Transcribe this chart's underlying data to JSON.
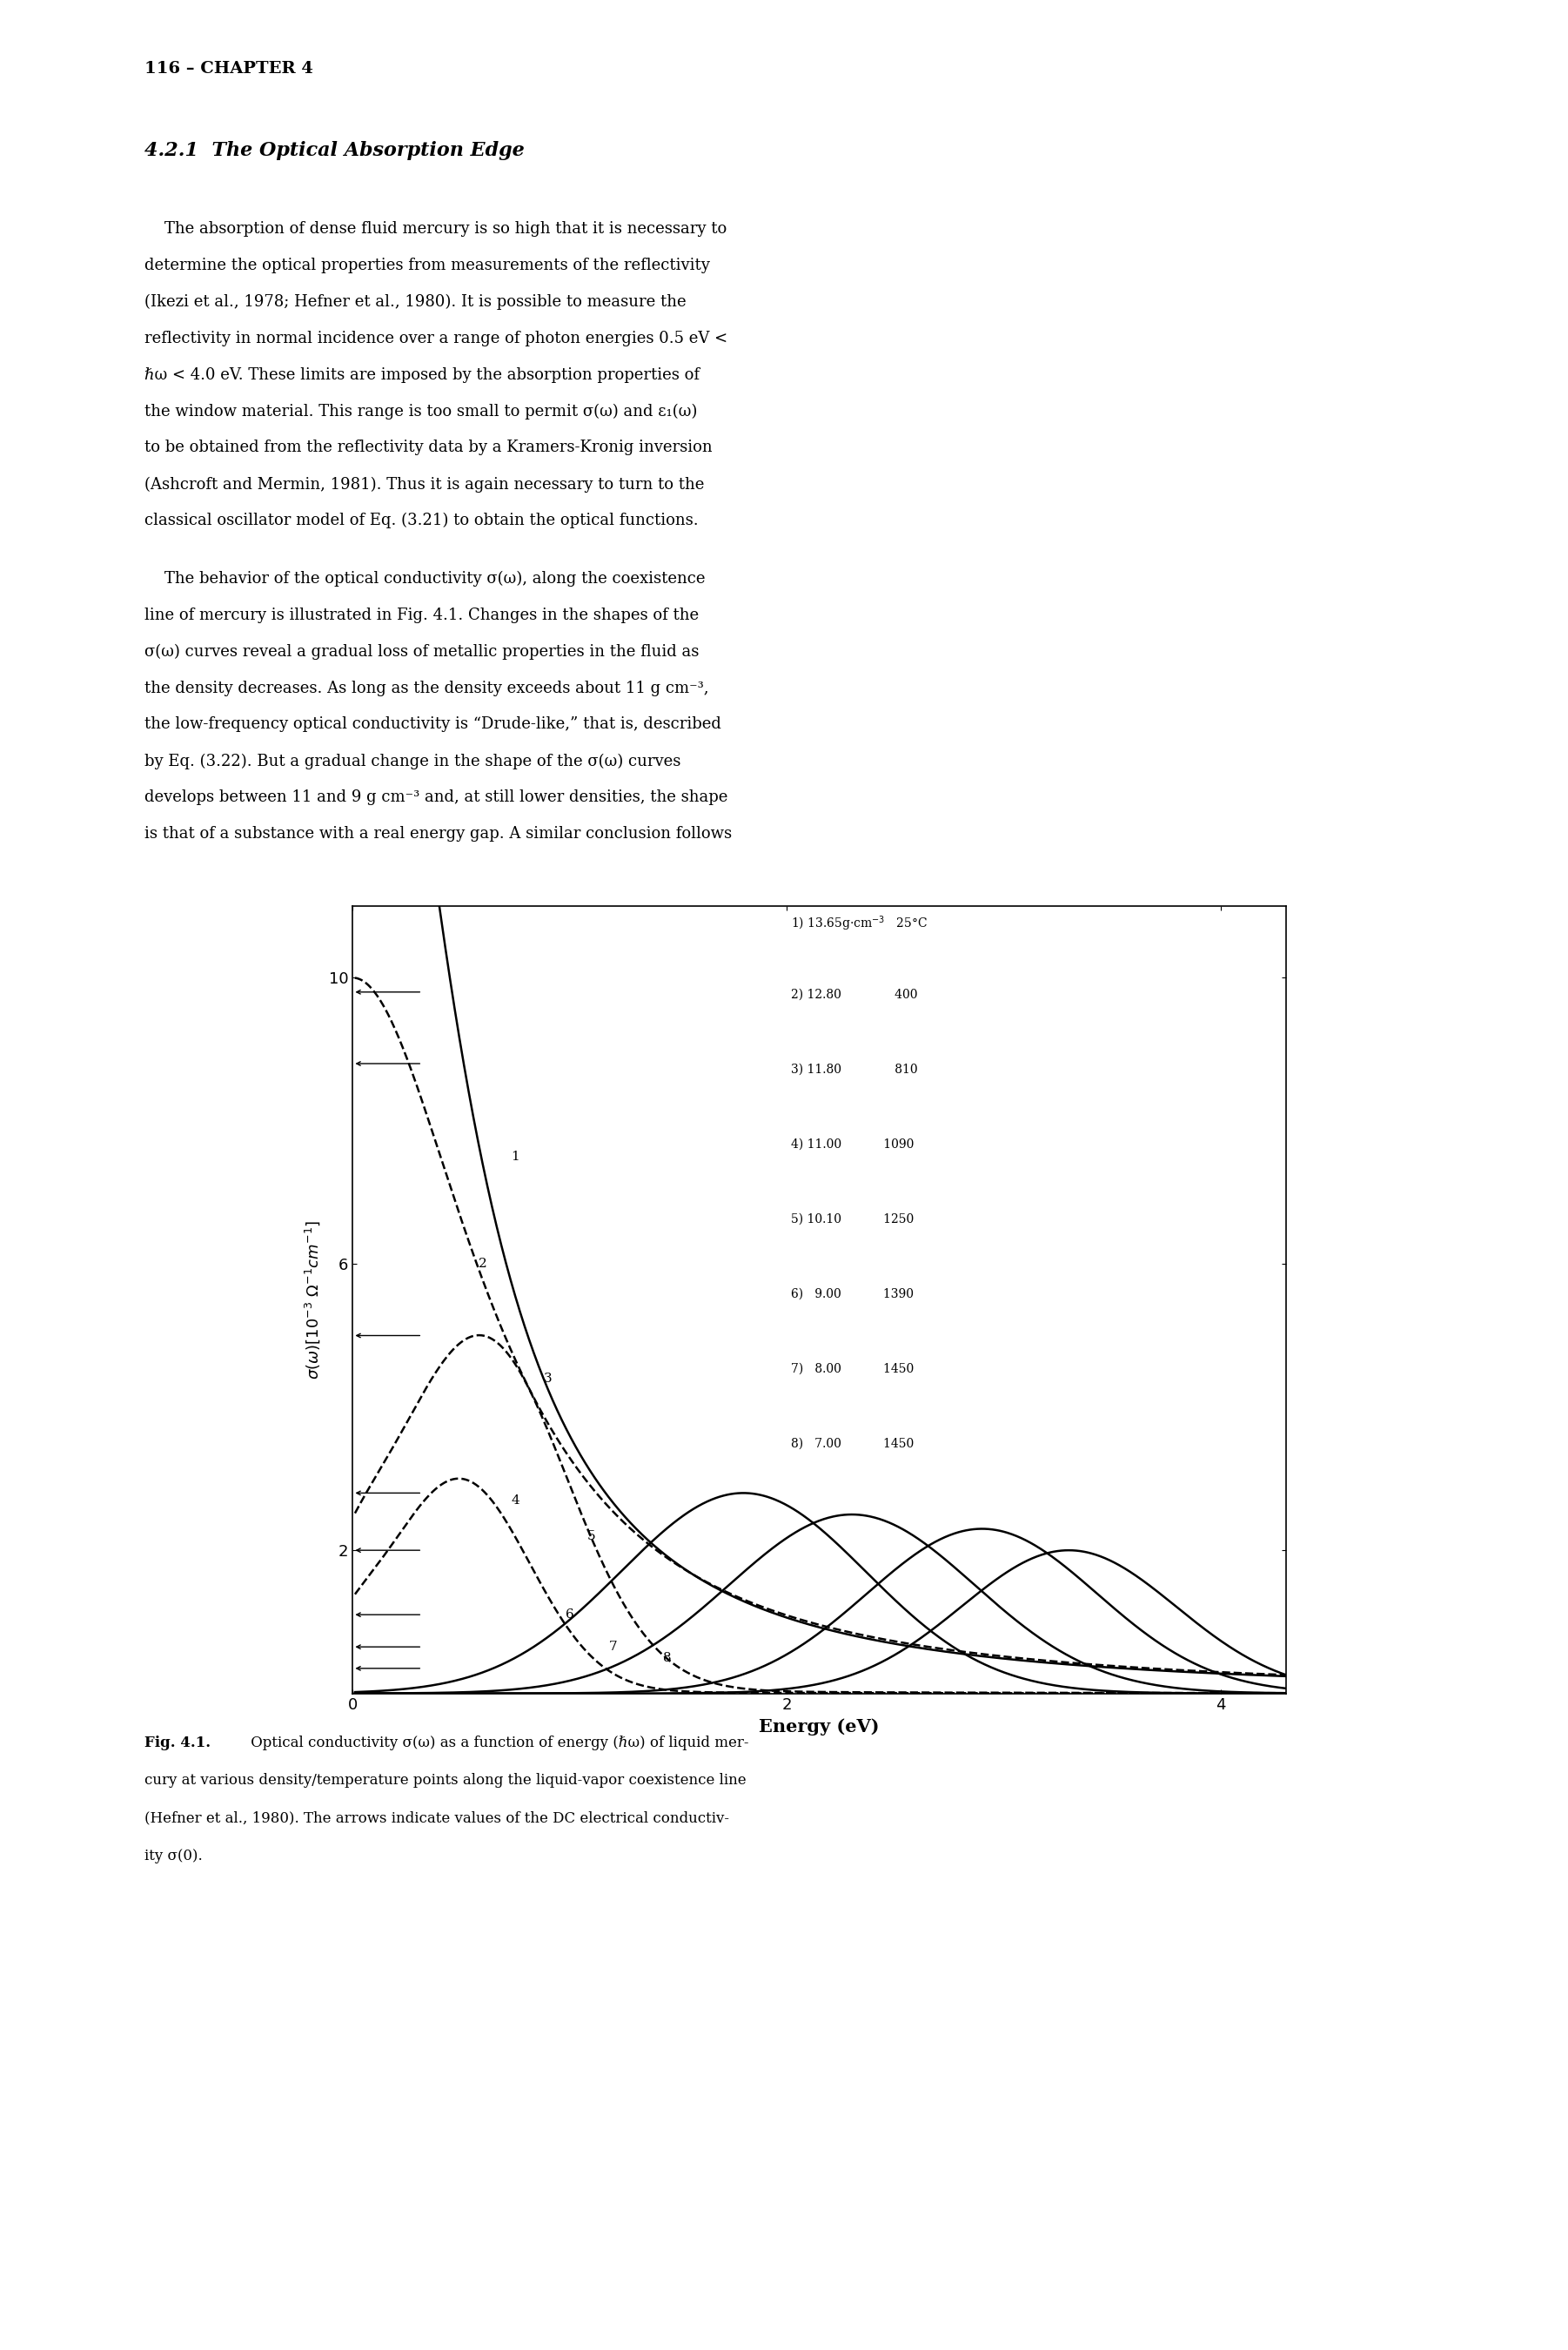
{
  "page_header": "116 – CHAPTER 4",
  "section_title": "4.2.1  The Optical Absorption Edge",
  "body_text": [
    "    The absorption of dense fluid mercury is so high that it is necessary to",
    "determine the optical properties from measurements of the reflectivity",
    "(Ikezi et al., 1978; Hefner et al., 1980). It is possible to measure the",
    "reflectivity in normal incidence over a range of photon energies 0.5 eV <",
    "ℏω < 4.0 eV. These limits are imposed by the absorption properties of",
    "the window material. This range is too small to permit σ(ω) and ε₁(ω)",
    "to be obtained from the reflectivity data by a Kramers-Kronig inversion",
    "(Ashcroft and Mermin, 1981). Thus it is again necessary to turn to the",
    "classical oscillator model of Eq. (3.21) to obtain the optical functions."
  ],
  "body_text2": [
    "    The behavior of the optical conductivity σ(ω), along the coexistence",
    "line of mercury is illustrated in Fig. 4.1. Changes in the shapes of the",
    "σ(ω) curves reveal a gradual loss of metallic properties in the fluid as",
    "the density decreases. As long as the density exceeds about 11 g cm⁻³,",
    "the low-frequency optical conductivity is “Drude-like,” that is, described",
    "by Eq. (3.22). But a gradual change in the shape of the σ(ω) curves",
    "develops between 11 and 9 g cm⁻³ and, at still lower densities, the shape",
    "is that of a substance with a real energy gap. A similar conclusion follows"
  ],
  "caption_bold": "Fig. 4.1.",
  "caption_rest": " Optical conductivity σ(ω) as a function of energy (ℏω) of liquid mercury at various density/temperature points along the liquid-vapor coexistence line (Hefner et al., 1980). The arrows indicate values of the DC electrical conductivity σ(0).",
  "xlabel": "Energy (eV)",
  "ylabel": "σ(ω)[10⁻³ Ω⁻¹cm⁻¹]",
  "xlim": [
    0,
    4.3
  ],
  "ylim": [
    0,
    11.0
  ],
  "xticks": [
    0,
    2,
    4
  ],
  "yticks": [
    2,
    6,
    10
  ],
  "dc_conductivity": [
    9.8,
    8.8,
    5.0,
    2.8,
    2.0,
    1.1,
    0.65,
    0.35
  ]
}
